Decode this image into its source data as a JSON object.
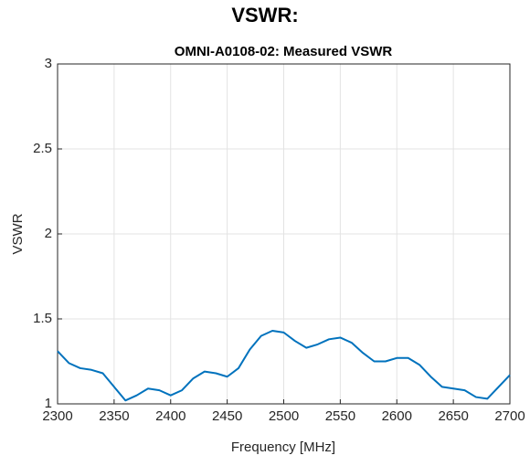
{
  "heading": "VSWR:",
  "chart_data": {
    "type": "line",
    "title": "OMNI-A0108-02: Measured VSWR",
    "x_label": "Frequency [MHz]",
    "y_label": "VSWR",
    "x": [
      2300,
      2310,
      2320,
      2330,
      2340,
      2350,
      2360,
      2370,
      2380,
      2390,
      2400,
      2410,
      2420,
      2430,
      2440,
      2450,
      2460,
      2470,
      2480,
      2490,
      2500,
      2510,
      2520,
      2530,
      2540,
      2550,
      2560,
      2570,
      2580,
      2590,
      2600,
      2610,
      2620,
      2630,
      2640,
      2650,
      2660,
      2670,
      2680,
      2690,
      2700
    ],
    "series": [
      {
        "name": "VSWR",
        "color": "#0072bd",
        "values": [
          1.31,
          1.24,
          1.21,
          1.2,
          1.18,
          1.1,
          1.02,
          1.05,
          1.09,
          1.08,
          1.05,
          1.08,
          1.15,
          1.19,
          1.18,
          1.16,
          1.21,
          1.32,
          1.4,
          1.43,
          1.42,
          1.37,
          1.33,
          1.35,
          1.38,
          1.39,
          1.36,
          1.3,
          1.25,
          1.25,
          1.27,
          1.27,
          1.23,
          1.16,
          1.1,
          1.09,
          1.08,
          1.04,
          1.03,
          1.1,
          1.17
        ]
      }
    ],
    "xlim": [
      2300,
      2700
    ],
    "xticks": [
      2300,
      2350,
      2400,
      2450,
      2500,
      2550,
      2600,
      2650,
      2700
    ],
    "ylim": [
      1,
      3
    ],
    "yticks": [
      1,
      1.5,
      2,
      2.5,
      3
    ],
    "grid": true
  }
}
